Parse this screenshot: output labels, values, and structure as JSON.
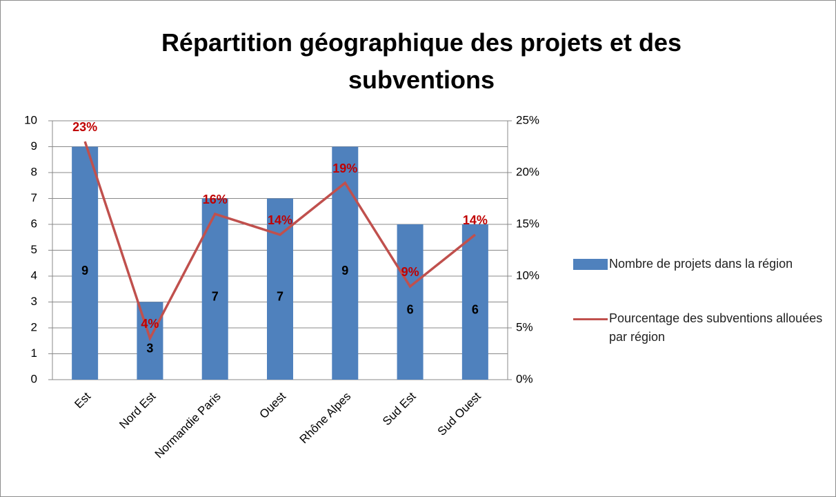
{
  "chart_data": {
    "type": "combo",
    "title": "Répartition géographique des projets et des subventions",
    "categories": [
      "Est",
      "Nord Est",
      "Normandie Paris",
      "Ouest",
      "Rhône Alpes",
      "Sud Est",
      "Sud Ouest"
    ],
    "series": [
      {
        "name": "Nombre de projets dans la région",
        "type": "bar",
        "color": "#4f81bd",
        "values": [
          9,
          3,
          7,
          7,
          9,
          6,
          6
        ]
      },
      {
        "name": "Pourcentage des subventions allouées par région",
        "type": "line",
        "axis": "y2",
        "color": "#c0504d",
        "label_color": "#c00000",
        "values": [
          23,
          4,
          16,
          14,
          19,
          9,
          14
        ],
        "value_labels": [
          "23%",
          "4%",
          "16%",
          "14%",
          "19%",
          "9%",
          "14%"
        ]
      }
    ],
    "ylim": [
      0,
      10
    ],
    "yticks": [
      0,
      1,
      2,
      3,
      4,
      5,
      6,
      7,
      8,
      9,
      10
    ],
    "y2lim": [
      0,
      25
    ],
    "y2ticks": [
      {
        "value": 0,
        "label": "0%"
      },
      {
        "value": 5,
        "label": "5%"
      },
      {
        "value": 10,
        "label": "10%"
      },
      {
        "value": 15,
        "label": "15%"
      },
      {
        "value": 20,
        "label": "20%"
      },
      {
        "value": 25,
        "label": "25%"
      }
    ],
    "grid": true,
    "legend": "right"
  }
}
